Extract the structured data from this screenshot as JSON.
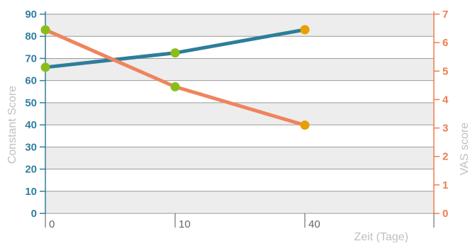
{
  "chart_data": {
    "type": "line",
    "x_categories": [
      "0",
      "10",
      "40"
    ],
    "xlabel": "Zeit (Tage)",
    "left_axis": {
      "label": "Constant Score",
      "ylim": [
        0,
        90
      ],
      "ticks": [
        "0",
        "10",
        "20",
        "30",
        "40",
        "50",
        "60",
        "70",
        "80",
        "90"
      ],
      "color": "#2f7f9f"
    },
    "right_axis": {
      "label": "VAS score",
      "ylim": [
        0,
        7
      ],
      "ticks": [
        "0",
        "1",
        "2",
        "3",
        "4",
        "5",
        "6",
        "7"
      ],
      "color": "#ee7d4f"
    },
    "series": [
      {
        "axis": "left",
        "values": [
          66,
          72.5,
          83
        ],
        "color": "#2d7d9a",
        "marker_colors": [
          "#8bbd1a",
          "#8bbd1a",
          "#e8a000"
        ]
      },
      {
        "axis": "right",
        "values": [
          6.45,
          4.45,
          3.1
        ],
        "color": "#ef845d",
        "marker_colors": [
          "#8bbd1a",
          "#8bbd1a",
          "#e8a000"
        ]
      }
    ],
    "grid": true,
    "band_colors": [
      "#ededed",
      "#ffffff"
    ]
  }
}
